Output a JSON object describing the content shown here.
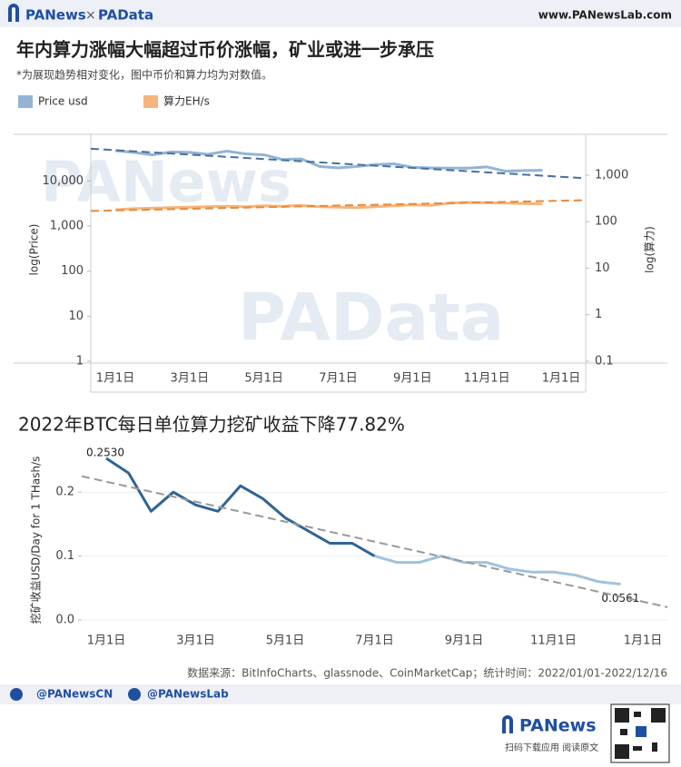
{
  "header": {
    "brand": "PANews",
    "separator": "×",
    "brand2": "PAData",
    "url": "www.PANewsLab.com"
  },
  "title": "年内算力涨幅大幅超过币价涨幅，矿业或进一步承压",
  "subtitle": "*为展现趋势相对变化，图中币价和算力均为对数值。",
  "watermarks": [
    "PANews",
    "PAData"
  ],
  "chart_data": [
    {
      "type": "line",
      "categories": [
        "1月1日",
        null,
        null,
        null,
        "3月1日",
        null,
        null,
        null,
        "5月1日",
        null,
        null,
        null,
        "7月1日",
        null,
        null,
        null,
        "9月1日",
        null,
        null,
        null,
        "11月1日",
        null,
        null,
        null,
        "1月1日"
      ],
      "series": [
        {
          "name": "Price usd",
          "color": "#93b4d4",
          "values": [
            47000,
            43000,
            38000,
            44000,
            43000,
            39000,
            46000,
            40000,
            38000,
            30000,
            31000,
            21000,
            19500,
            21000,
            23000,
            24000,
            20000,
            19500,
            19300,
            19200,
            20500,
            16500,
            17000,
            17300,
            null
          ],
          "trend": [
            52000,
            11500
          ],
          "trend_color": "#4a6fa0"
        },
        {
          "name": "算力EH/s",
          "color": "#f5b57c",
          "axis": "y2",
          "values": [
            180,
            190,
            195,
            200,
            205,
            210,
            215,
            210,
            220,
            215,
            225,
            210,
            205,
            200,
            210,
            220,
            230,
            225,
            250,
            260,
            255,
            250,
            245,
            240,
            null
          ],
          "trend": [
            170,
            290
          ],
          "trend_color": "#e8893a"
        }
      ],
      "log_scale": true,
      "ylim": [
        1,
        90000
      ],
      "yticks": [
        {
          "value": 10000,
          "label": "10,000"
        },
        {
          "value": 1000,
          "label": "1,000"
        },
        100,
        10,
        1
      ],
      "y2lim": [
        0.1,
        6300
      ],
      "y2ticks": [
        {
          "value": 1000,
          "label": "1,000"
        },
        100,
        10,
        1,
        0.1
      ],
      "ylabel": "log(Price)",
      "y2label": "log(算力)",
      "legend": "top-left",
      "grid": false
    },
    {
      "type": "line",
      "title": "2022年BTC每日单位算力挖矿收益下降77.82%",
      "categories": [
        "1月1日",
        null,
        null,
        null,
        "3月1日",
        null,
        null,
        null,
        "5月1日",
        null,
        null,
        null,
        "7月1日",
        null,
        null,
        null,
        "9月1日",
        null,
        null,
        null,
        "11月1日",
        null,
        null,
        null,
        "1月1日"
      ],
      "series": [
        {
          "color": "#2f6496",
          "values": [
            0.253,
            0.23,
            0.17,
            0.2,
            0.18,
            0.17,
            0.21,
            0.19,
            0.16,
            0.14,
            0.12,
            0.12,
            0.1,
            null,
            null,
            null,
            null,
            null,
            null,
            null,
            null,
            null,
            null,
            null,
            null
          ],
          "value_labels": [
            "0.2530",
            null,
            null,
            null,
            null,
            null,
            null,
            null,
            null,
            null,
            null,
            null,
            null,
            null,
            null,
            null,
            null,
            null,
            null,
            null,
            null,
            null,
            null,
            null,
            null
          ]
        },
        {
          "color": "#9ec3e0",
          "values": [
            null,
            null,
            null,
            null,
            null,
            null,
            null,
            null,
            null,
            null,
            null,
            null,
            0.1,
            0.09,
            0.09,
            0.1,
            0.09,
            0.09,
            0.08,
            0.075,
            0.075,
            0.07,
            0.06,
            0.0561,
            null
          ],
          "value_labels": [
            null,
            null,
            null,
            null,
            null,
            null,
            null,
            null,
            null,
            null,
            null,
            null,
            null,
            null,
            null,
            null,
            null,
            null,
            null,
            null,
            null,
            null,
            null,
            "0.0561",
            null
          ]
        }
      ],
      "trend": [
        0.225,
        0.02
      ],
      "trend_color": "#999999",
      "ylim": [
        -0.01,
        0.26
      ],
      "yticks": [
        {
          "value": 0,
          "label": "0.0"
        },
        0.1,
        0.2
      ],
      "ylabel": "挖矿收益USD/Day for 1 THash/s",
      "grid": true
    }
  ],
  "source": "数据来源：BitInfoCharts、glassnode、CoinMarketCap；统计时间：2022/01/01-2022/12/16",
  "footer": {
    "twitter": "@PANewsCN",
    "facebook": "@PANewsLab",
    "logo": "PANews",
    "qr_caption": "扫码下载应用  阅读原文"
  }
}
